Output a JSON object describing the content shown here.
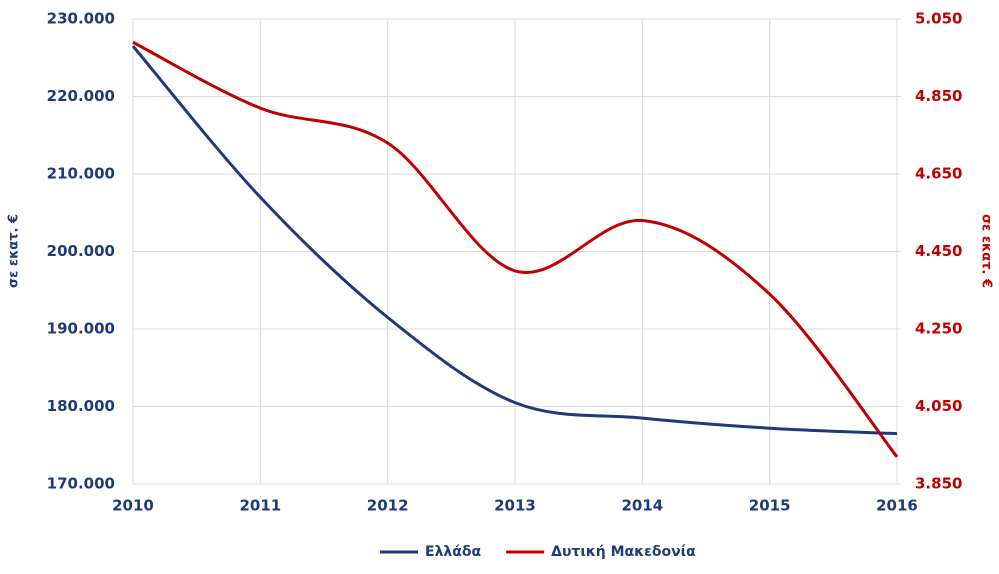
{
  "chart_data": {
    "type": "line",
    "x": [
      2010,
      2011,
      2012,
      2013,
      2014,
      2015,
      2016
    ],
    "xlim": [
      2010,
      2016
    ],
    "xticks": [
      2010,
      2011,
      2012,
      2013,
      2014,
      2015,
      2016
    ],
    "ylim": [
      170000,
      230000
    ],
    "yticks": [
      {
        "value": 170000,
        "label": "170.000"
      },
      {
        "value": 180000,
        "label": "180.000"
      },
      {
        "value": 190000,
        "label": "190.000"
      },
      {
        "value": 200000,
        "label": "200.000"
      },
      {
        "value": 210000,
        "label": "210.000"
      },
      {
        "value": 220000,
        "label": "220.000"
      },
      {
        "value": 230000,
        "label": "230.000"
      }
    ],
    "y2lim": [
      3850,
      5050
    ],
    "y2ticks": [
      {
        "value": 3850,
        "label": "3.850"
      },
      {
        "value": 4050,
        "label": "4.050"
      },
      {
        "value": 4250,
        "label": "4.250"
      },
      {
        "value": 4450,
        "label": "4.450"
      },
      {
        "value": 4650,
        "label": "4.650"
      },
      {
        "value": 4850,
        "label": "4.850"
      },
      {
        "value": 5050,
        "label": "5.050"
      }
    ],
    "y_label": "σε εκατ. €",
    "y2_label": "σε εκατ. €",
    "grid": true,
    "smooth": true,
    "legend": "bottom",
    "series": [
      {
        "name": "Ελλάδα",
        "color": "#1f3a7a",
        "values": [
          226500,
          207000,
          191500,
          180500,
          178500,
          177200,
          176500
        ]
      },
      {
        "name": "Δυτική Μακεδονία",
        "color": "#c00000",
        "axis": "y2",
        "values": [
          4990,
          4820,
          4730,
          4400,
          4530,
          4340,
          3920
        ]
      }
    ]
  }
}
